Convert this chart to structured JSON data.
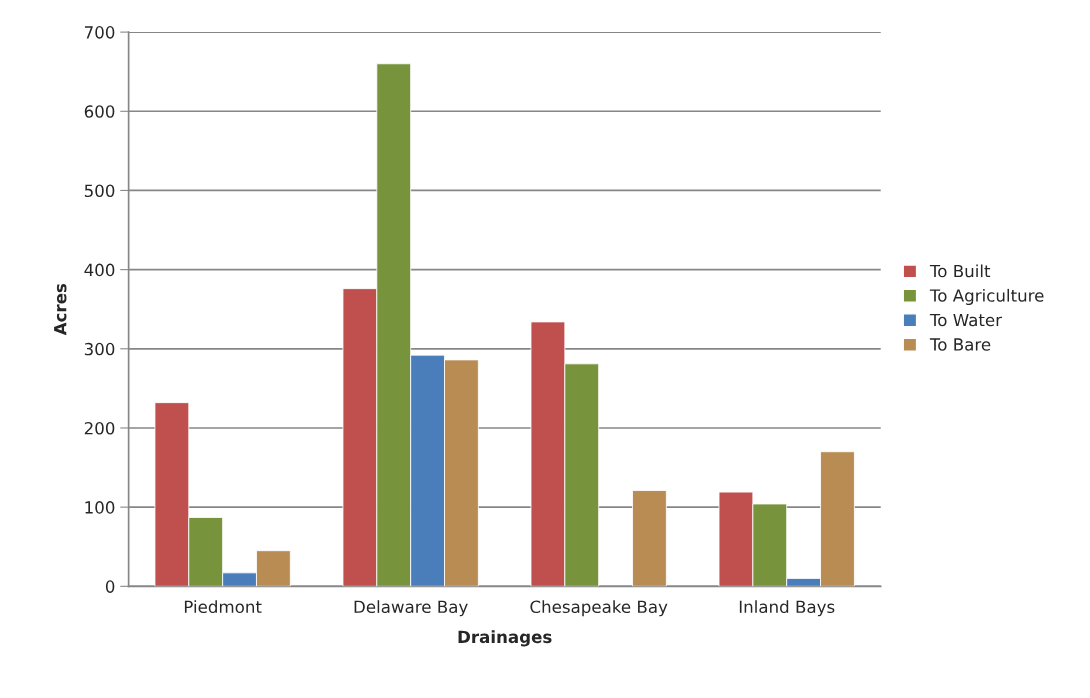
{
  "chart_data": {
    "type": "bar",
    "xlabel": "Drainages",
    "ylabel": "Acres",
    "categories": [
      "Piedmont",
      "Delaware Bay",
      "Chesapeake Bay",
      "Inland Bays"
    ],
    "series": [
      {
        "name": "To Built",
        "color": "#c0504d",
        "values": [
          232,
          376,
          334,
          119
        ]
      },
      {
        "name": "To Agriculture",
        "color": "#77933c",
        "values": [
          87,
          660,
          281,
          104
        ]
      },
      {
        "name": "To Water",
        "color": "#4a7ebb",
        "values": [
          17,
          292,
          null,
          10
        ]
      },
      {
        "name": "To Bare",
        "color": "#b88c52",
        "values": [
          45,
          286,
          121,
          170
        ]
      }
    ],
    "ylim": [
      0,
      700
    ],
    "yticks": [
      0,
      100,
      200,
      300,
      400,
      500,
      600,
      700
    ],
    "grid": "y",
    "legend": "right"
  }
}
